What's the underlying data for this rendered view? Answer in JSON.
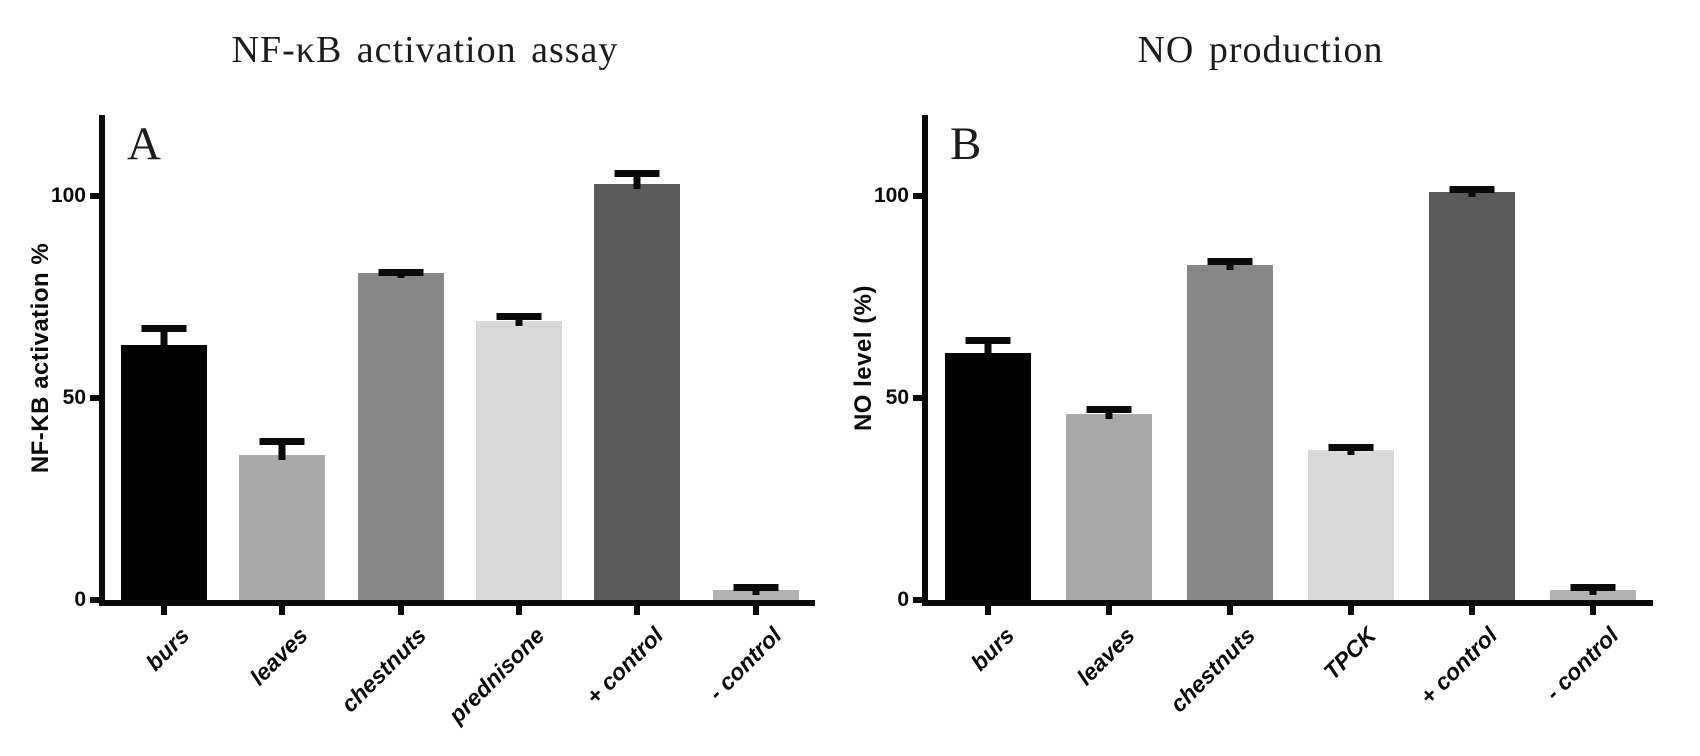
{
  "figure": {
    "background": "#ffffff",
    "text_color": "#0a0a0a"
  },
  "chart_data": [
    {
      "type": "bar",
      "panel_label": "A",
      "title": "NF-κB activation assay",
      "ylabel": "NF-KB activation %",
      "xlabel": "",
      "ylim": [
        0,
        120
      ],
      "yticks": [
        0,
        50,
        100
      ],
      "grid": false,
      "legend": null,
      "categories": [
        "burs",
        "leaves",
        "chestnuts",
        "prednisone",
        "+ control",
        "- control"
      ],
      "values": [
        63,
        36,
        81,
        69,
        103,
        2.5
      ],
      "errors": [
        5,
        4,
        1,
        2,
        3.5,
        1.5
      ],
      "bar_colors": [
        "#000000",
        "#a9a9a9",
        "#878787",
        "#d9d9d9",
        "#5a5a5a",
        "#b2b2b2"
      ]
    },
    {
      "type": "bar",
      "panel_label": "B",
      "title": "NO production",
      "ylabel": "NO level (%)",
      "xlabel": "",
      "ylim": [
        0,
        120
      ],
      "yticks": [
        0,
        50,
        100
      ],
      "grid": false,
      "legend": null,
      "categories": [
        "burs",
        "leaves",
        "chestnuts",
        "TPCK",
        "+ control",
        "- control"
      ],
      "values": [
        61,
        46,
        83,
        37,
        101,
        2.5
      ],
      "errors": [
        4,
        2,
        1.5,
        1.5,
        1.5,
        1.5
      ],
      "bar_colors": [
        "#000000",
        "#a9a9a9",
        "#878787",
        "#d9d9d9",
        "#5a5a5a",
        "#b2b2b2"
      ]
    }
  ]
}
